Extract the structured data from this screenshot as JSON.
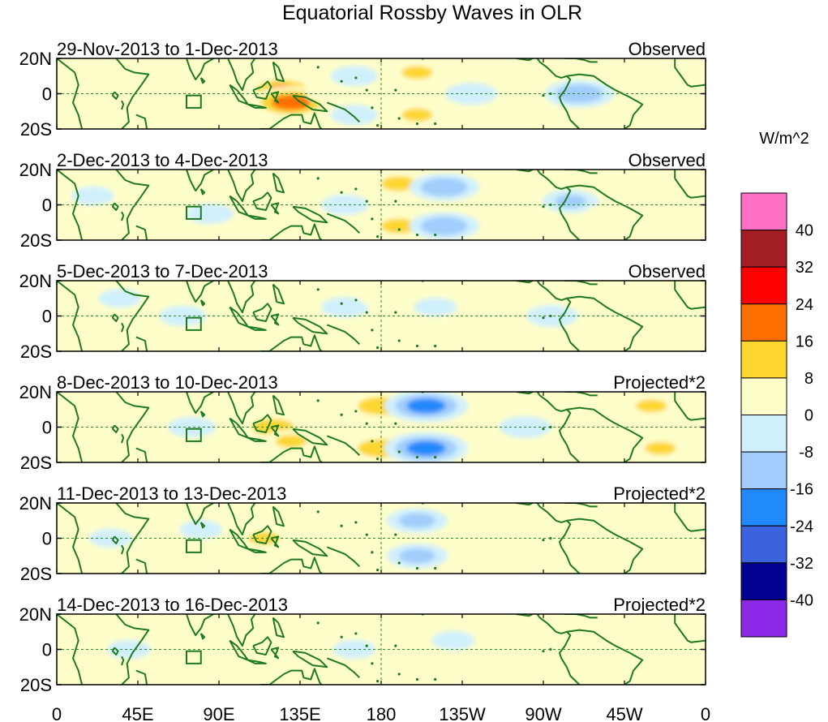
{
  "chart_data": {
    "type": "heatmap",
    "title": "Equatorial Rossby Waves in OLR",
    "units": "W/m^2",
    "x_tick_labels": [
      "0",
      "45E",
      "90E",
      "135E",
      "180",
      "135W",
      "90W",
      "45W",
      "0"
    ],
    "x_tick_lons": [
      0,
      45,
      90,
      135,
      180,
      225,
      270,
      315,
      360
    ],
    "y_tick_labels": [
      "20N",
      "0",
      "20S"
    ],
    "y_tick_lats": [
      20,
      0,
      -20
    ],
    "xlim": [
      0,
      360
    ],
    "ylim": [
      -20,
      20
    ],
    "colorbar": {
      "labels": [
        "40",
        "32",
        "24",
        "16",
        "8",
        "0",
        "-8",
        "-16",
        "-24",
        "-32",
        "-40"
      ],
      "levels": [
        40,
        32,
        24,
        16,
        8,
        0,
        -8,
        -16,
        -24,
        -32,
        -40
      ],
      "colors": [
        "#ff6fc3",
        "#a31f24",
        "#ff0000",
        "#ff6f00",
        "#fed630",
        "#fefeca",
        "#d1f0fd",
        "#a2cdfc",
        "#2089fc",
        "#3c63de",
        "#000091",
        "#8a2ae6"
      ]
    },
    "panels": [
      {
        "date_range": "29-Nov-2013 to 1-Dec-2013",
        "label": "Observed",
        "features": [
          {
            "lon": 40,
            "lat": 8,
            "value": 6
          },
          {
            "lon": 70,
            "lat": -5,
            "value": 6
          },
          {
            "lon": 110,
            "lat": 5,
            "value": 8
          },
          {
            "lon": 125,
            "lat": 2,
            "value": 20
          },
          {
            "lon": 130,
            "lat": -5,
            "value": 24
          },
          {
            "lon": 150,
            "lat": 0,
            "value": 6
          },
          {
            "lon": 165,
            "lat": 10,
            "value": -8
          },
          {
            "lon": 165,
            "lat": -12,
            "value": -8
          },
          {
            "lon": 200,
            "lat": 12,
            "value": 12
          },
          {
            "lon": 200,
            "lat": -12,
            "value": 12
          },
          {
            "lon": 230,
            "lat": 0,
            "value": -10
          },
          {
            "lon": 250,
            "lat": 10,
            "value": 4
          },
          {
            "lon": 290,
            "lat": 0,
            "value": -18
          },
          {
            "lon": 330,
            "lat": 5,
            "value": 5
          }
        ]
      },
      {
        "date_range": "2-Dec-2013 to 4-Dec-2013",
        "label": "Observed",
        "features": [
          {
            "lon": 20,
            "lat": 5,
            "value": -6
          },
          {
            "lon": 45,
            "lat": 5,
            "value": 8
          },
          {
            "lon": 85,
            "lat": -5,
            "value": -8
          },
          {
            "lon": 120,
            "lat": 2,
            "value": 10
          },
          {
            "lon": 135,
            "lat": -5,
            "value": 8
          },
          {
            "lon": 160,
            "lat": 0,
            "value": -8
          },
          {
            "lon": 190,
            "lat": 12,
            "value": 14
          },
          {
            "lon": 190,
            "lat": -12,
            "value": 14
          },
          {
            "lon": 215,
            "lat": 10,
            "value": -18
          },
          {
            "lon": 215,
            "lat": -12,
            "value": -18
          },
          {
            "lon": 285,
            "lat": 2,
            "value": -12
          },
          {
            "lon": 305,
            "lat": -5,
            "value": 6
          }
        ]
      },
      {
        "date_range": "5-Dec-2013 to 7-Dec-2013",
        "label": "Observed",
        "features": [
          {
            "lon": 35,
            "lat": 10,
            "value": -6
          },
          {
            "lon": 70,
            "lat": 0,
            "value": -8
          },
          {
            "lon": 120,
            "lat": 5,
            "value": 8
          },
          {
            "lon": 135,
            "lat": -5,
            "value": 6
          },
          {
            "lon": 160,
            "lat": 5,
            "value": -8
          },
          {
            "lon": 180,
            "lat": 10,
            "value": 6
          },
          {
            "lon": 190,
            "lat": -10,
            "value": 8
          },
          {
            "lon": 210,
            "lat": 5,
            "value": -6
          },
          {
            "lon": 275,
            "lat": 0,
            "value": -10
          },
          {
            "lon": 305,
            "lat": -3,
            "value": 8
          }
        ]
      },
      {
        "date_range": "8-Dec-2013 to 10-Dec-2013",
        "label": "Projected*2",
        "features": [
          {
            "lon": 75,
            "lat": 0,
            "value": -8
          },
          {
            "lon": 120,
            "lat": 0,
            "value": 16
          },
          {
            "lon": 130,
            "lat": -8,
            "value": 12
          },
          {
            "lon": 180,
            "lat": 12,
            "value": 18
          },
          {
            "lon": 180,
            "lat": -12,
            "value": 18
          },
          {
            "lon": 205,
            "lat": 12,
            "value": -24
          },
          {
            "lon": 205,
            "lat": -12,
            "value": -24
          },
          {
            "lon": 260,
            "lat": 0,
            "value": -10
          },
          {
            "lon": 300,
            "lat": 5,
            "value": 8
          },
          {
            "lon": 330,
            "lat": 12,
            "value": 12
          },
          {
            "lon": 335,
            "lat": -12,
            "value": 12
          }
        ]
      },
      {
        "date_range": "11-Dec-2013 to 13-Dec-2013",
        "label": "Projected*2",
        "features": [
          {
            "lon": 30,
            "lat": 0,
            "value": -6
          },
          {
            "lon": 80,
            "lat": 5,
            "value": -6
          },
          {
            "lon": 115,
            "lat": 0,
            "value": 12
          },
          {
            "lon": 125,
            "lat": 10,
            "value": 10
          },
          {
            "lon": 170,
            "lat": 12,
            "value": 8
          },
          {
            "lon": 170,
            "lat": -12,
            "value": 8
          },
          {
            "lon": 200,
            "lat": 10,
            "value": -14
          },
          {
            "lon": 200,
            "lat": -10,
            "value": -14
          },
          {
            "lon": 250,
            "lat": 10,
            "value": 5
          },
          {
            "lon": 300,
            "lat": 2,
            "value": 8
          },
          {
            "lon": 330,
            "lat": -15,
            "value": 8
          }
        ]
      },
      {
        "date_range": "14-Dec-2013 to 16-Dec-2013",
        "label": "Projected*2",
        "features": [
          {
            "lon": 40,
            "lat": 0,
            "value": -6
          },
          {
            "lon": 100,
            "lat": 0,
            "value": 10
          },
          {
            "lon": 130,
            "lat": 5,
            "value": 6
          },
          {
            "lon": 165,
            "lat": 0,
            "value": -6
          },
          {
            "lon": 220,
            "lat": 5,
            "value": -6
          },
          {
            "lon": 260,
            "lat": 5,
            "value": 5
          },
          {
            "lon": 300,
            "lat": -2,
            "value": 8
          },
          {
            "lon": 340,
            "lat": 5,
            "value": 4
          }
        ]
      }
    ]
  }
}
